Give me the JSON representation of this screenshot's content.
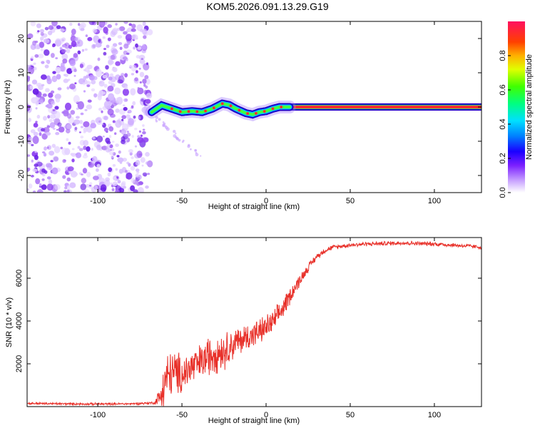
{
  "title": "KOM5.2026.091.13.29.G19",
  "colors": {
    "axis": "#000000",
    "snr_line": "#e8312a",
    "ridge_core": "#ff2f2f",
    "ridge_edge": "#1a00c8",
    "noise": "#8a3cf0"
  },
  "chart_data": [
    {
      "type": "heatmap",
      "name": "spectrogram",
      "xlabel": "Height of straight line (km)",
      "ylabel": "Frequency (Hz)",
      "xlim": [
        -142,
        128
      ],
      "ylim": [
        -25,
        25
      ],
      "xticks": [
        -100,
        -50,
        0,
        50,
        100
      ],
      "xtick_labels": [
        "-100",
        "-50",
        "0",
        "50",
        "100"
      ],
      "yticks": [
        -20,
        -10,
        0,
        10,
        20
      ],
      "ytick_labels": [
        "-20",
        "-10",
        "0",
        "10",
        "20"
      ],
      "noise_region_x": [
        -142,
        -69
      ],
      "ridge": {
        "x": [
          -68,
          -62,
          -56,
          -50,
          -44,
          -38,
          -32,
          -26,
          -22,
          -18,
          -12,
          -8,
          -4,
          0,
          4,
          8,
          12,
          20,
          128
        ],
        "y": [
          -1.5,
          0.5,
          -0.5,
          -1.5,
          -1.2,
          -1.5,
          -0.5,
          1,
          0.6,
          -0.5,
          -1.8,
          -2.2,
          -1.5,
          -1.2,
          -0.5,
          0,
          0,
          0,
          0
        ]
      },
      "steady_band_x": [
        12,
        128
      ],
      "colorbar": {
        "label": "Normalized spectral amplitude",
        "range": [
          0,
          1
        ],
        "ticks": [
          0.0,
          0.2,
          0.4,
          0.6,
          0.8
        ],
        "tick_labels": [
          "0.0",
          "0.2",
          "0.4",
          "0.6",
          "0.8"
        ]
      }
    },
    {
      "type": "line",
      "name": "snr",
      "xlabel": "Height of straight line (km)",
      "ylabel": "SNR (10 * v/v)",
      "xlim": [
        -142,
        128
      ],
      "ylim": [
        0,
        7900
      ],
      "xticks": [
        -100,
        -50,
        0,
        50,
        100
      ],
      "xtick_labels": [
        "-100",
        "-50",
        "0",
        "50",
        "100"
      ],
      "yticks": [
        2000,
        4000,
        6000
      ],
      "ytick_labels": [
        "2000",
        "4000",
        "6000"
      ],
      "series": [
        {
          "name": "SNR",
          "x": [
            -142,
            -120,
            -100,
            -80,
            -66,
            -62,
            -60,
            -56,
            -50,
            -45,
            -40,
            -35,
            -30,
            -25,
            -20,
            -15,
            -10,
            -5,
            0,
            5,
            10,
            15,
            20,
            25,
            30,
            35,
            40,
            50,
            60,
            70,
            80,
            90,
            100,
            110,
            120,
            128
          ],
          "y": [
            150,
            130,
            120,
            130,
            180,
            600,
            1200,
            1600,
            1500,
            1800,
            2000,
            2300,
            2600,
            2600,
            2900,
            3100,
            3300,
            3450,
            3700,
            4000,
            4600,
            5300,
            5900,
            6500,
            7000,
            7300,
            7450,
            7550,
            7600,
            7620,
            7650,
            7620,
            7600,
            7550,
            7500,
            7450
          ],
          "noise_amplitude": [
            60,
            60,
            60,
            60,
            80,
            900,
            1400,
            1300,
            1100,
            1100,
            1000,
            1100,
            1200,
            1000,
            900,
            800,
            800,
            700,
            700,
            650,
            600,
            450,
            350,
            250,
            180,
            150,
            130,
            120,
            120,
            120,
            120,
            120,
            120,
            120,
            120,
            120
          ]
        }
      ]
    }
  ]
}
